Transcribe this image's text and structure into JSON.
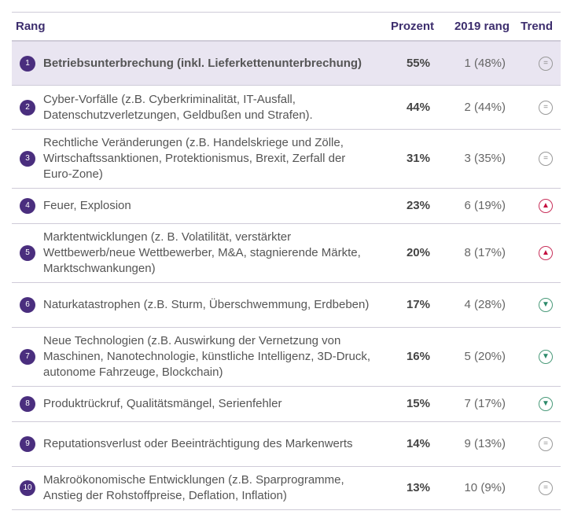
{
  "header": {
    "rank": "Rang",
    "percent": "Prozent",
    "rank2019": "2019 rang",
    "trend": "Trend"
  },
  "colors": {
    "accent": "#4a2e7e",
    "highlight": "#e9e5f1",
    "up": "#c41040",
    "down": "#2d8a6a"
  },
  "rows": [
    {
      "rank": "1",
      "text": "Betriebsunterbrechung (inkl. Lieferkettenunterbrechung)",
      "percent": "55%",
      "prev": "1 (48%)",
      "trend": "equal"
    },
    {
      "rank": "2",
      "text": "Cyber-Vorfälle (z.B. Cyberkriminalität, IT-Ausfall, Datenschutzverletzungen, Geldbußen und Strafen).",
      "percent": "44%",
      "prev": "2 (44%)",
      "trend": "equal"
    },
    {
      "rank": "3",
      "text": "Rechtliche Veränderungen (z.B. Handelskriege und Zölle, Wirtschaftssanktionen, Protektionismus, Brexit, Zerfall der Euro-Zone)",
      "percent": "31%",
      "prev": "3 (35%)",
      "trend": "equal"
    },
    {
      "rank": "4",
      "text": "Feuer, Explosion",
      "percent": "23%",
      "prev": "6 (19%)",
      "trend": "up"
    },
    {
      "rank": "5",
      "text": "Marktentwicklungen (z. B. Volatilität, verstärkter Wettbewerb/neue Wettbewerber, M&A, stagnierende Märkte, Marktschwankungen)",
      "percent": "20%",
      "prev": "8 (17%)",
      "trend": "up"
    },
    {
      "rank": "6",
      "text": "Naturkatastrophen (z.B. Sturm, Überschwemmung, Erdbeben)",
      "percent": "17%",
      "prev": "4 (28%)",
      "trend": "down"
    },
    {
      "rank": "7",
      "text": "Neue Technologien (z.B. Auswirkung der Vernetzung von Maschinen, Nanotechnologie, künstliche Intelligenz, 3D-Druck, autonome Fahrzeuge, Blockchain)",
      "percent": "16%",
      "prev": "5 (20%)",
      "trend": "down"
    },
    {
      "rank": "8",
      "text": "Produktrückruf, Qualitätsmängel, Serienfehler",
      "percent": "15%",
      "prev": "7 (17%)",
      "trend": "down"
    },
    {
      "rank": "9",
      "text": "Reputationsverlust oder Beeinträchtigung des Markenwerts",
      "percent": "14%",
      "prev": "9 (13%)",
      "trend": "equal"
    },
    {
      "rank": "10",
      "text": "Makroökonomische Entwicklungen (z.B. Sparprogramme, Anstieg der Rohstoffpreise, Deflation, Inflation)",
      "percent": "13%",
      "prev": "10 (9%)",
      "trend": "equal"
    }
  ]
}
